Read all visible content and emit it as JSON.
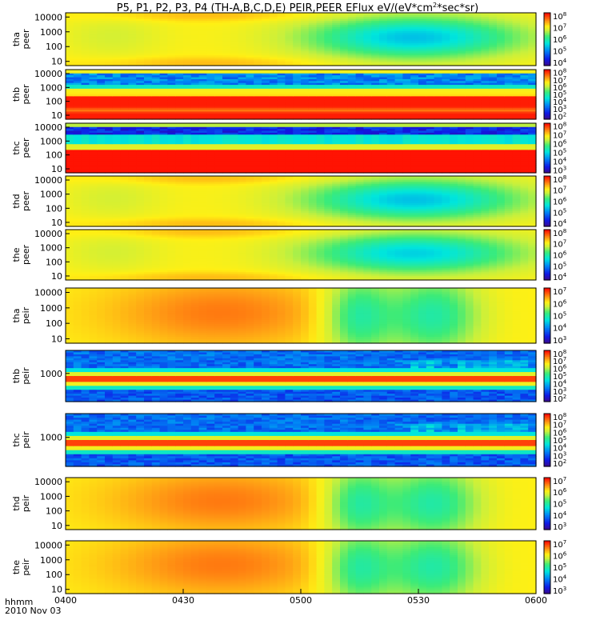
{
  "chart_data": {
    "type": "heatmap",
    "title": "P5, P1, P2, P3, P4 (TH-A,B,C,D,E) PEIR,PEER EFlux eV/(eV*cm^2*sec*sr)",
    "title_parts": {
      "prefix": "P5, P1, P2, P3, P4 (TH-A,B,C,D,E) PEIR,PEER EFlux eV/(eV*cm",
      "sup": "2",
      "suffix": "*sec*sr)"
    },
    "x_label": "hhmm",
    "x_date": "2010 Nov 03",
    "x_ticks": [
      "0400",
      "0430",
      "0500",
      "0530",
      "0600"
    ],
    "x_range": [
      "04:00",
      "06:00"
    ],
    "y_scale": "log",
    "z_scale": "log",
    "colormap": "rainbow",
    "colors": {
      "low": "#3a0a8c",
      "mid": "#00e0d0",
      "high": "#ff0000",
      "divider": "#ffff00"
    },
    "panels": [
      {
        "label1": "tha",
        "label2": "peer",
        "yticks": [
          "10000",
          "1000",
          "100",
          "10"
        ],
        "colorbar_ticks": [
          [
            "10",
            "8"
          ],
          [
            "10",
            "7"
          ],
          [
            "10",
            "6"
          ],
          [
            "10",
            "5"
          ],
          [
            "10",
            "4"
          ]
        ],
        "kind": "peer",
        "amp": 0.75
      },
      {
        "label1": "thb",
        "label2": "peer",
        "yticks": [
          "10000",
          "1000",
          "100",
          "10"
        ],
        "colorbar_ticks": [
          [
            "10",
            "8"
          ],
          [
            "10",
            "7"
          ],
          [
            "10",
            "6"
          ],
          [
            "10",
            "5"
          ],
          [
            "10",
            "4"
          ],
          [
            "10",
            "3"
          ],
          [
            "10",
            "2"
          ]
        ],
        "kind": "flat"
      },
      {
        "label1": "thc",
        "label2": "peer",
        "yticks": [
          "10000",
          "1000",
          "100",
          "10"
        ],
        "colorbar_ticks": [
          [
            "10",
            "8"
          ],
          [
            "10",
            "7"
          ],
          [
            "10",
            "6"
          ],
          [
            "10",
            "5"
          ],
          [
            "10",
            "4"
          ],
          [
            "10",
            "3"
          ]
        ],
        "kind": "flat2"
      },
      {
        "label1": "thd",
        "label2": "peer",
        "yticks": [
          "10000",
          "1000",
          "100",
          "10"
        ],
        "colorbar_ticks": [
          [
            "10",
            "8"
          ],
          [
            "10",
            "7"
          ],
          [
            "10",
            "6"
          ],
          [
            "10",
            "5"
          ],
          [
            "10",
            "4"
          ]
        ],
        "kind": "peer",
        "amp": 0.75
      },
      {
        "label1": "the",
        "label2": "peer",
        "yticks": [
          "10000",
          "1000",
          "100",
          "10"
        ],
        "colorbar_ticks": [
          [
            "10",
            "8"
          ],
          [
            "10",
            "7"
          ],
          [
            "10",
            "6"
          ],
          [
            "10",
            "5"
          ],
          [
            "10",
            "4"
          ]
        ],
        "kind": "peer",
        "amp": 0.7
      },
      {
        "label1": "tha",
        "label2": "peir",
        "yticks": [
          "10000",
          "1000",
          "100",
          "10"
        ],
        "colorbar_ticks": [
          [
            "10",
            "7"
          ],
          [
            "10",
            "6"
          ],
          [
            "10",
            "5"
          ],
          [
            "10",
            "4"
          ],
          [
            "10",
            "3"
          ]
        ],
        "kind": "peir"
      },
      {
        "label1": "thb",
        "label2": "peir",
        "yticks": [
          "1000"
        ],
        "colorbar_ticks": [
          [
            "10",
            "8"
          ],
          [
            "10",
            "7"
          ],
          [
            "10",
            "6"
          ],
          [
            "10",
            "5"
          ],
          [
            "10",
            "4"
          ],
          [
            "10",
            "3"
          ],
          [
            "10",
            "2"
          ]
        ],
        "kind": "band"
      },
      {
        "label1": "thc",
        "label2": "peir",
        "yticks": [
          "1000"
        ],
        "colorbar_ticks": [
          [
            "10",
            "8"
          ],
          [
            "10",
            "7"
          ],
          [
            "10",
            "6"
          ],
          [
            "10",
            "5"
          ],
          [
            "10",
            "4"
          ],
          [
            "10",
            "3"
          ],
          [
            "10",
            "2"
          ]
        ],
        "kind": "band"
      },
      {
        "label1": "thd",
        "label2": "peir",
        "yticks": [
          "10000",
          "1000",
          "100",
          "10"
        ],
        "colorbar_ticks": [
          [
            "10",
            "7"
          ],
          [
            "10",
            "6"
          ],
          [
            "10",
            "5"
          ],
          [
            "10",
            "4"
          ],
          [
            "10",
            "3"
          ]
        ],
        "kind": "peir"
      },
      {
        "label1": "the",
        "label2": "peir",
        "yticks": [
          "10000",
          "1000",
          "100",
          "10"
        ],
        "colorbar_ticks": [
          [
            "10",
            "7"
          ],
          [
            "10",
            "6"
          ],
          [
            "10",
            "5"
          ],
          [
            "10",
            "4"
          ],
          [
            "10",
            "3"
          ]
        ],
        "kind": "peir"
      }
    ]
  }
}
